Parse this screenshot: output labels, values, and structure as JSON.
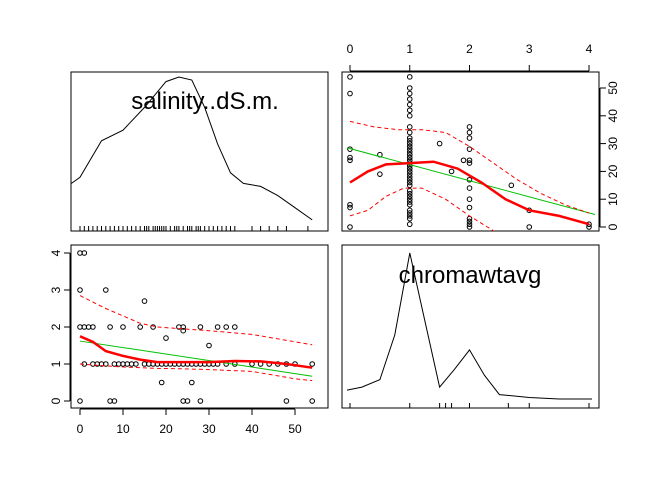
{
  "chart_data": {
    "type": "scatterplot-matrix",
    "variables": [
      "salinity..dS.m.",
      "chromawtavg"
    ],
    "colors": {
      "points": "#000000",
      "smooth": "#ff0000",
      "linear": "#00c000",
      "frame": "#000000"
    },
    "salinity": {
      "xlim": [
        0,
        54
      ],
      "ticks": [
        0,
        10,
        20,
        30,
        40,
        50
      ],
      "tick_labels": [
        "0",
        "10",
        "20",
        "30",
        "40",
        "50"
      ],
      "density": [
        [
          -2,
          0.3
        ],
        [
          0,
          0.34
        ],
        [
          5,
          0.58
        ],
        [
          10,
          0.65
        ],
        [
          15,
          0.8
        ],
        [
          20,
          0.97
        ],
        [
          23,
          1.0
        ],
        [
          26,
          0.98
        ],
        [
          29,
          0.8
        ],
        [
          32,
          0.56
        ],
        [
          35,
          0.37
        ],
        [
          38,
          0.3
        ],
        [
          42,
          0.28
        ],
        [
          46,
          0.22
        ],
        [
          50,
          0.14
        ],
        [
          54,
          0.06
        ]
      ],
      "rug": [
        0,
        1,
        2,
        3,
        4,
        5,
        6,
        7,
        8,
        9,
        10,
        11,
        12,
        13,
        14,
        15,
        15.5,
        16,
        17,
        17.5,
        18,
        18.5,
        19,
        19.5,
        20,
        21,
        22,
        22.5,
        23,
        24,
        25,
        25.5,
        26,
        27,
        27.5,
        28,
        29,
        30,
        31,
        32,
        33,
        34,
        35,
        36,
        40,
        42,
        44,
        46,
        48,
        53
      ]
    },
    "chromawtavg": {
      "xlim": [
        0,
        4
      ],
      "ticks": [
        0,
        1,
        2,
        3,
        4
      ],
      "tick_labels": [
        "0",
        "1",
        "2",
        "3",
        "4"
      ],
      "density": [
        [
          -0.05,
          0.08
        ],
        [
          0.2,
          0.1
        ],
        [
          0.5,
          0.15
        ],
        [
          0.75,
          0.45
        ],
        [
          1.0,
          1.0
        ],
        [
          1.25,
          0.55
        ],
        [
          1.5,
          0.1
        ],
        [
          1.75,
          0.22
        ],
        [
          2.0,
          0.35
        ],
        [
          2.25,
          0.18
        ],
        [
          2.5,
          0.05
        ],
        [
          3.0,
          0.03
        ],
        [
          3.5,
          0.02
        ],
        [
          4.0,
          0.02
        ],
        [
          4.05,
          0.02
        ]
      ],
      "rug": [
        0,
        1,
        1.5,
        1.6,
        1.7,
        2,
        2.65,
        3,
        4
      ]
    },
    "points": [
      [
        0,
        4
      ],
      [
        1,
        4
      ],
      [
        0,
        3
      ],
      [
        6,
        3
      ],
      [
        15,
        2.7
      ],
      [
        0,
        2
      ],
      [
        1,
        2
      ],
      [
        2,
        2
      ],
      [
        3,
        2
      ],
      [
        7,
        2
      ],
      [
        10,
        2
      ],
      [
        14,
        2
      ],
      [
        17,
        2
      ],
      [
        23,
        2
      ],
      [
        24,
        2
      ],
      [
        28,
        2
      ],
      [
        32,
        2
      ],
      [
        34,
        2
      ],
      [
        36,
        2
      ],
      [
        24,
        1.9
      ],
      [
        20,
        1.7
      ],
      [
        30,
        1.5
      ],
      [
        1,
        1
      ],
      [
        3,
        1
      ],
      [
        4,
        1
      ],
      [
        5,
        1
      ],
      [
        6,
        1
      ],
      [
        8,
        1
      ],
      [
        9,
        1
      ],
      [
        10,
        1
      ],
      [
        11,
        1
      ],
      [
        12,
        1
      ],
      [
        13,
        1
      ],
      [
        15,
        1
      ],
      [
        16,
        1
      ],
      [
        17,
        1
      ],
      [
        18,
        1
      ],
      [
        19,
        1
      ],
      [
        20,
        1
      ],
      [
        21,
        1
      ],
      [
        22,
        1
      ],
      [
        23,
        1
      ],
      [
        24,
        1
      ],
      [
        25,
        1
      ],
      [
        26,
        1
      ],
      [
        27,
        1
      ],
      [
        28,
        1
      ],
      [
        29,
        1
      ],
      [
        30,
        1
      ],
      [
        31,
        1
      ],
      [
        32,
        1
      ],
      [
        34,
        1
      ],
      [
        36,
        1
      ],
      [
        40,
        1
      ],
      [
        42,
        1
      ],
      [
        44,
        1
      ],
      [
        46,
        1
      ],
      [
        48,
        1
      ],
      [
        50,
        1
      ],
      [
        54,
        1
      ],
      [
        19,
        0.5
      ],
      [
        26,
        0.5
      ],
      [
        0,
        0
      ],
      [
        7,
        0
      ],
      [
        8,
        0
      ],
      [
        24,
        0
      ],
      [
        25,
        0
      ],
      [
        28,
        0
      ],
      [
        48,
        0
      ],
      [
        54,
        0
      ]
    ],
    "linear_fit": {
      "at_x0": 1.62,
      "at_x54": 0.67
    },
    "smooth_chroma_on_salinity": [
      [
        0,
        1.75
      ],
      [
        3,
        1.6
      ],
      [
        6,
        1.35
      ],
      [
        10,
        1.22
      ],
      [
        14,
        1.12
      ],
      [
        18,
        1.05
      ],
      [
        22,
        1.05
      ],
      [
        26,
        1.05
      ],
      [
        30,
        1.05
      ],
      [
        36,
        1.08
      ],
      [
        42,
        1.07
      ],
      [
        48,
        1.0
      ],
      [
        54,
        0.9
      ]
    ],
    "upper_band": [
      [
        0,
        2.85
      ],
      [
        6,
        2.5
      ],
      [
        10,
        2.3
      ],
      [
        14,
        2.1
      ],
      [
        18,
        2.0
      ],
      [
        24,
        1.95
      ],
      [
        30,
        1.9
      ],
      [
        40,
        1.8
      ],
      [
        50,
        1.6
      ],
      [
        54,
        1.52
      ]
    ],
    "lower_band": [
      [
        0,
        1.0
      ],
      [
        6,
        0.95
      ],
      [
        10,
        0.92
      ],
      [
        14,
        0.9
      ],
      [
        18,
        0.88
      ],
      [
        24,
        0.87
      ],
      [
        30,
        0.85
      ],
      [
        40,
        0.8
      ],
      [
        50,
        0.6
      ],
      [
        54,
        0.55
      ]
    ],
    "smooth_salinity_on_chroma": [
      [
        0,
        16
      ],
      [
        0.3,
        20
      ],
      [
        0.6,
        22.5
      ],
      [
        1,
        23
      ],
      [
        1.4,
        23.5
      ],
      [
        1.8,
        21
      ],
      [
        2.2,
        16
      ],
      [
        2.6,
        10
      ],
      [
        3,
        6
      ],
      [
        3.5,
        4
      ],
      [
        4,
        1
      ]
    ],
    "upper_band_t": [
      [
        0,
        38
      ],
      [
        0.4,
        36
      ],
      [
        0.8,
        35
      ],
      [
        1.2,
        35
      ],
      [
        1.6,
        34
      ],
      [
        2,
        29
      ],
      [
        2.4,
        23
      ],
      [
        2.8,
        17
      ],
      [
        3.2,
        12
      ],
      [
        3.6,
        8
      ],
      [
        4,
        5
      ]
    ],
    "lower_band_t": [
      [
        0,
        4
      ],
      [
        0.3,
        6
      ],
      [
        0.6,
        11
      ],
      [
        0.9,
        14
      ],
      [
        1.2,
        14
      ],
      [
        1.6,
        10
      ],
      [
        2,
        4
      ],
      [
        2.3,
        0
      ],
      [
        2.6,
        -4
      ]
    ]
  }
}
